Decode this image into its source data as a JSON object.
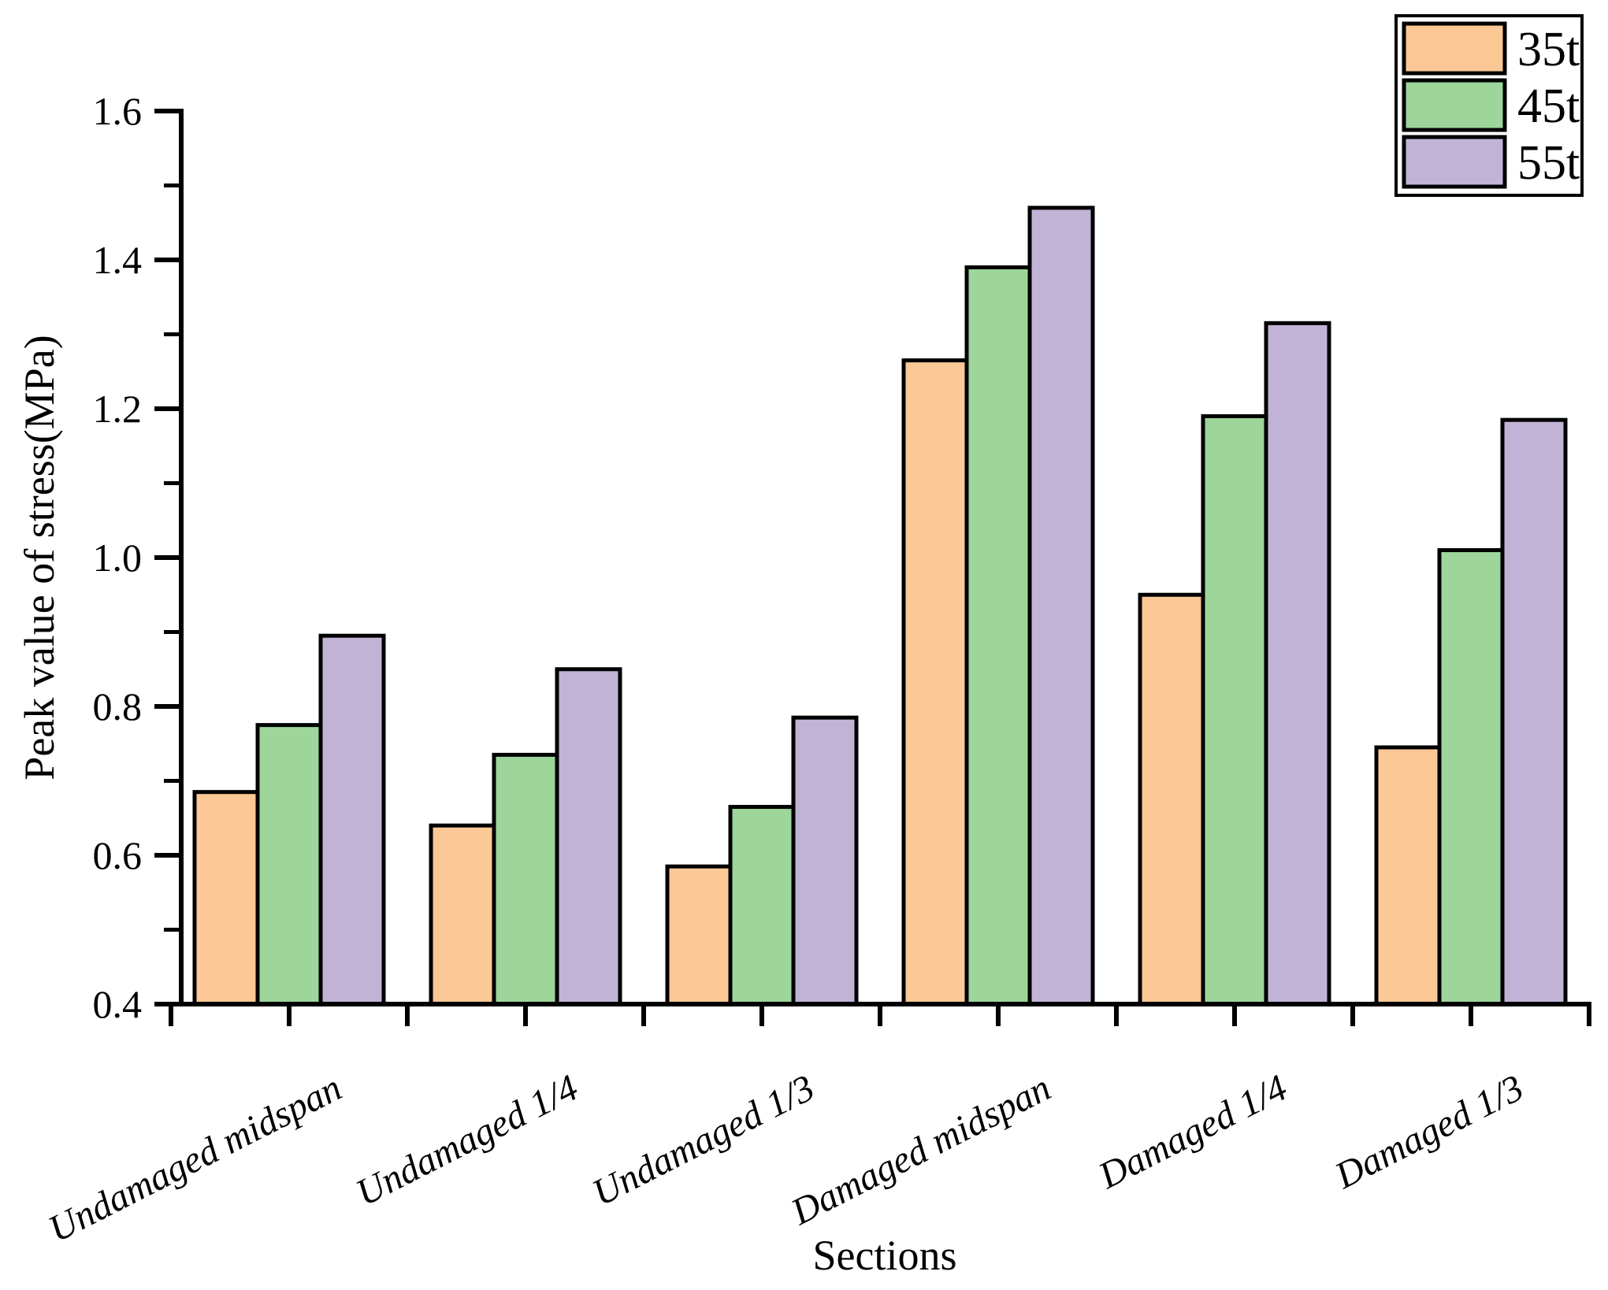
{
  "chart_data": {
    "type": "bar",
    "title": "",
    "xlabel": "Sections",
    "ylabel": "Peak value of stress(MPa)",
    "ylim": [
      0.4,
      1.6
    ],
    "ytick_major_step": 0.2,
    "ytick_minor_step": 0.1,
    "ytick_labels": [
      "0.4",
      "0.6",
      "0.8",
      "1.0",
      "1.2",
      "1.4",
      "1.6"
    ],
    "grid": false,
    "legend_position": "top-right",
    "categories": [
      "Undamaged midspan",
      "Undamaged 1/4",
      "Undamaged 1/3",
      "Damaged midspan",
      "Damaged 1/4",
      "Damaged 1/3"
    ],
    "series": [
      {
        "name": "35t",
        "color": "#FBC896",
        "values": [
          0.685,
          0.64,
          0.585,
          1.265,
          0.95,
          0.745
        ]
      },
      {
        "name": "45t",
        "color": "#9DD59B",
        "values": [
          0.775,
          0.735,
          0.665,
          1.39,
          1.19,
          1.01
        ]
      },
      {
        "name": "55t",
        "color": "#C1B3D6",
        "values": [
          0.895,
          0.85,
          0.785,
          1.47,
          1.315,
          1.185
        ]
      }
    ],
    "bar_outline_color": "#000000",
    "axis_color": "#000000"
  }
}
